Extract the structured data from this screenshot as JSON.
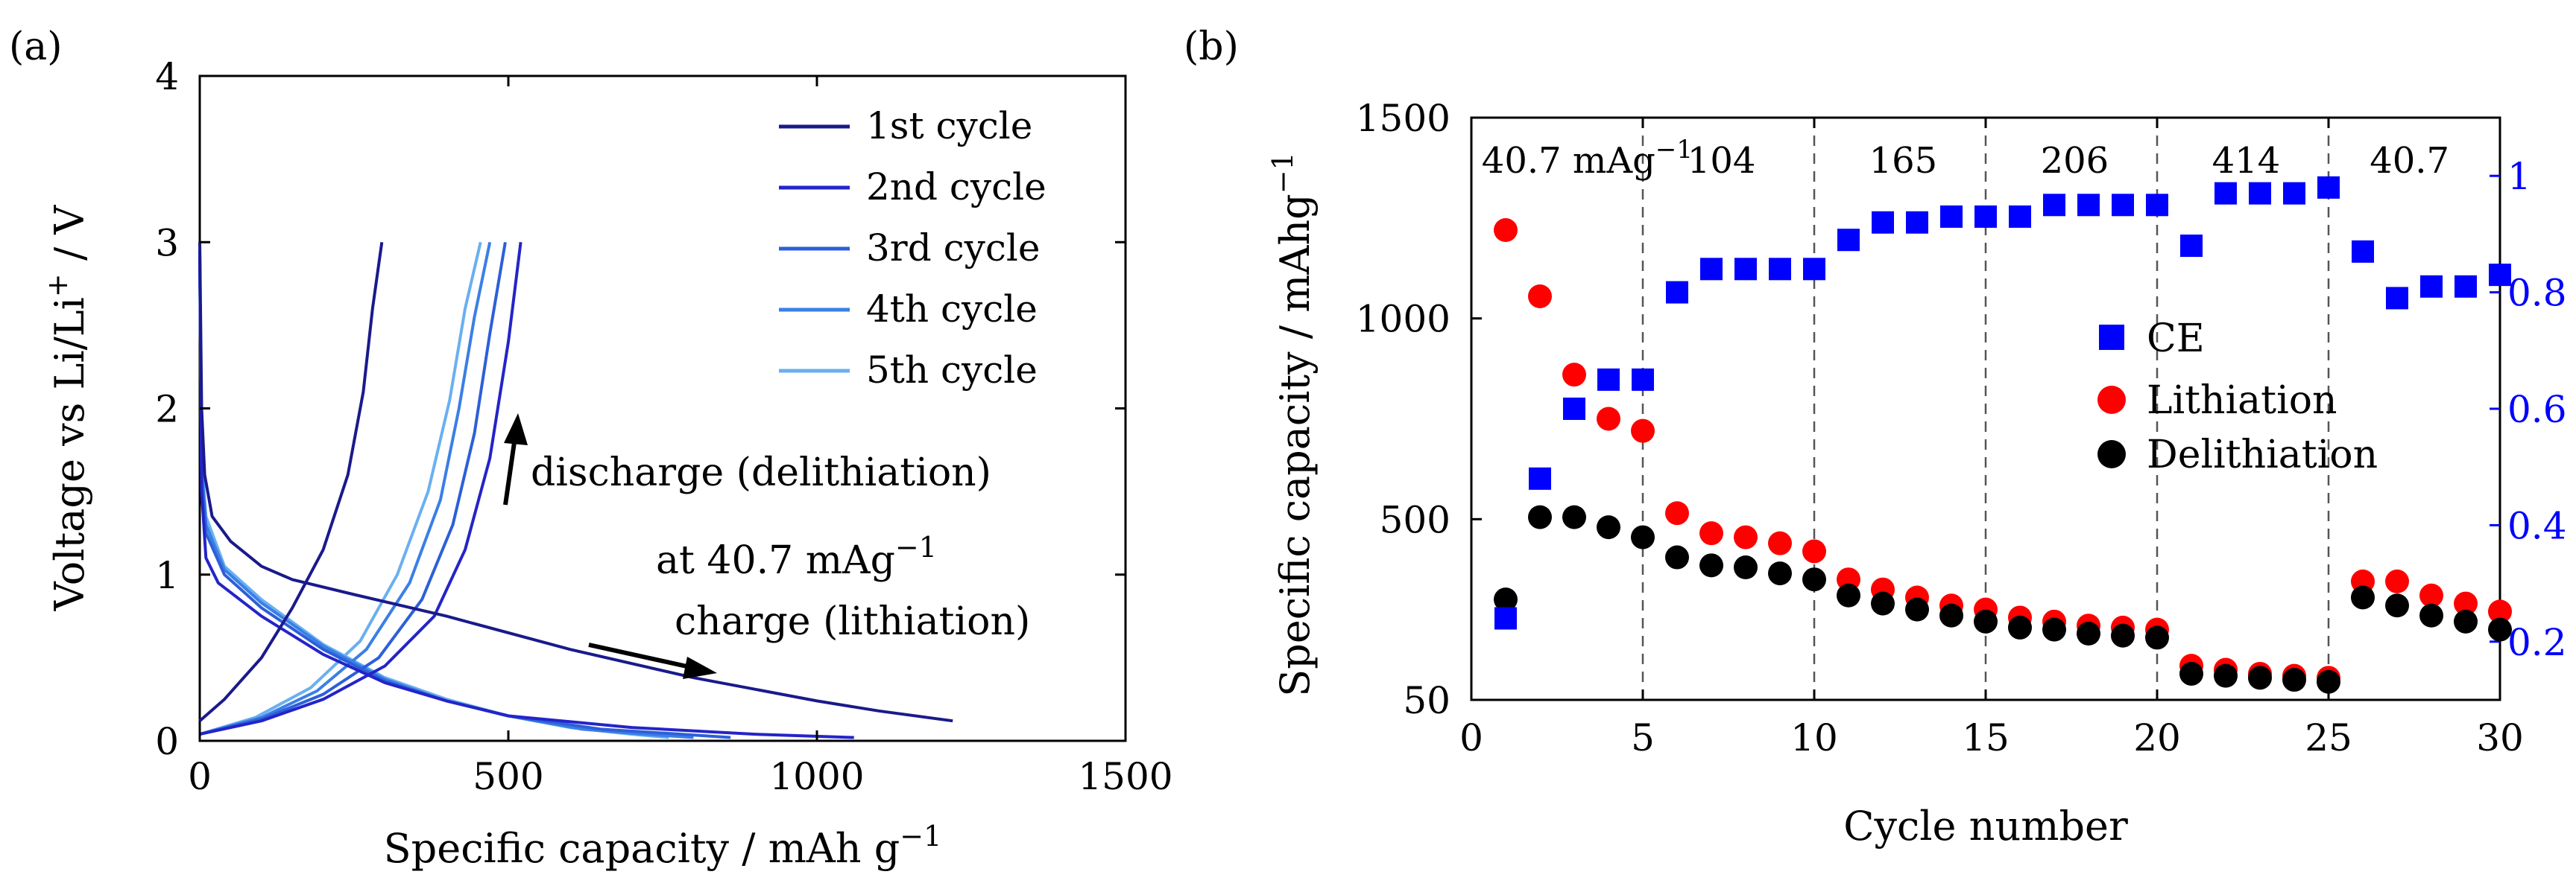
{
  "chart_data": [
    {
      "panel_label": "(a)",
      "type": "line",
      "xlabel": "Specific capacity / mAh g",
      "xlabel_sup": "−1",
      "ylabel": "Voltage vs Li/Li",
      "ylabel_sup": "+",
      "ylabel_tail": " / V",
      "xlim": [
        0,
        1500
      ],
      "ylim": [
        0,
        4
      ],
      "xticks": [
        0,
        500,
        1000,
        1500
      ],
      "yticks": [
        0,
        1,
        2,
        3,
        4
      ],
      "xtick_labels": [
        "0",
        "500",
        "1000",
        "1500"
      ],
      "ytick_labels": [
        "0",
        "1",
        "2",
        "3",
        "4"
      ],
      "legend": [
        "1st cycle",
        "2nd cycle",
        "3rd cycle",
        "4th cycle",
        "5th cycle"
      ],
      "annotations": {
        "discharge": "discharge (delithiation)",
        "rate_prefix": "at 40.7 mAg",
        "rate_sup": "−1",
        "charge": "charge (lithiation)"
      },
      "series": [
        {
          "name": "1st cycle",
          "color": "#1a1a8c",
          "charge": [
            [
              0,
              3.0
            ],
            [
              3,
              2.0
            ],
            [
              8,
              1.6
            ],
            [
              20,
              1.35
            ],
            [
              50,
              1.2
            ],
            [
              100,
              1.05
            ],
            [
              150,
              0.97
            ],
            [
              250,
              0.88
            ],
            [
              400,
              0.75
            ],
            [
              600,
              0.55
            ],
            [
              800,
              0.38
            ],
            [
              1000,
              0.24
            ],
            [
              1100,
              0.18
            ],
            [
              1220,
              0.12
            ]
          ],
          "discharge": [
            [
              0,
              0.12
            ],
            [
              40,
              0.25
            ],
            [
              100,
              0.5
            ],
            [
              150,
              0.8
            ],
            [
              200,
              1.15
            ],
            [
              240,
              1.6
            ],
            [
              265,
              2.1
            ],
            [
              280,
              2.6
            ],
            [
              295,
              3.0
            ]
          ]
        },
        {
          "name": "2nd cycle",
          "color": "#2424c8",
          "charge": [
            [
              0,
              2.95
            ],
            [
              3,
              1.5
            ],
            [
              10,
              1.1
            ],
            [
              30,
              0.95
            ],
            [
              100,
              0.75
            ],
            [
              200,
              0.52
            ],
            [
              300,
              0.35
            ],
            [
              400,
              0.24
            ],
            [
              500,
              0.15
            ],
            [
              700,
              0.08
            ],
            [
              900,
              0.04
            ],
            [
              1060,
              0.02
            ]
          ],
          "discharge": [
            [
              0,
              0.04
            ],
            [
              100,
              0.12
            ],
            [
              200,
              0.25
            ],
            [
              300,
              0.45
            ],
            [
              380,
              0.75
            ],
            [
              430,
              1.15
            ],
            [
              470,
              1.7
            ],
            [
              500,
              2.4
            ],
            [
              520,
              3.0
            ]
          ]
        },
        {
          "name": "3rd cycle",
          "color": "#2d5fd9",
          "charge": [
            [
              0,
              2.9
            ],
            [
              3,
              1.6
            ],
            [
              10,
              1.25
            ],
            [
              40,
              1.0
            ],
            [
              100,
              0.8
            ],
            [
              200,
              0.55
            ],
            [
              300,
              0.36
            ],
            [
              400,
              0.24
            ],
            [
              500,
              0.15
            ],
            [
              650,
              0.07
            ],
            [
              780,
              0.04
            ],
            [
              860,
              0.02
            ]
          ],
          "discharge": [
            [
              0,
              0.04
            ],
            [
              100,
              0.13
            ],
            [
              200,
              0.28
            ],
            [
              290,
              0.5
            ],
            [
              360,
              0.85
            ],
            [
              410,
              1.3
            ],
            [
              445,
              1.85
            ],
            [
              470,
              2.45
            ],
            [
              495,
              3.0
            ]
          ]
        },
        {
          "name": "4th cycle",
          "color": "#3a7fe6",
          "charge": [
            [
              0,
              2.9
            ],
            [
              3,
              1.65
            ],
            [
              10,
              1.3
            ],
            [
              40,
              1.03
            ],
            [
              100,
              0.83
            ],
            [
              200,
              0.57
            ],
            [
              300,
              0.37
            ],
            [
              400,
              0.24
            ],
            [
              500,
              0.15
            ],
            [
              620,
              0.07
            ],
            [
              720,
              0.04
            ],
            [
              800,
              0.02
            ]
          ],
          "discharge": [
            [
              0,
              0.04
            ],
            [
              100,
              0.14
            ],
            [
              190,
              0.3
            ],
            [
              270,
              0.55
            ],
            [
              340,
              0.95
            ],
            [
              390,
              1.45
            ],
            [
              420,
              2.0
            ],
            [
              445,
              2.55
            ],
            [
              470,
              3.0
            ]
          ]
        },
        {
          "name": "5th cycle",
          "color": "#6ab0f0",
          "charge": [
            [
              0,
              2.85
            ],
            [
              3,
              1.7
            ],
            [
              10,
              1.35
            ],
            [
              40,
              1.05
            ],
            [
              100,
              0.85
            ],
            [
              200,
              0.58
            ],
            [
              300,
              0.38
            ],
            [
              400,
              0.25
            ],
            [
              500,
              0.15
            ],
            [
              600,
              0.08
            ],
            [
              700,
              0.04
            ],
            [
              760,
              0.02
            ]
          ],
          "discharge": [
            [
              0,
              0.04
            ],
            [
              90,
              0.14
            ],
            [
              180,
              0.32
            ],
            [
              260,
              0.6
            ],
            [
              320,
              1.0
            ],
            [
              370,
              1.5
            ],
            [
              405,
              2.05
            ],
            [
              430,
              2.6
            ],
            [
              455,
              3.0
            ]
          ]
        }
      ]
    },
    {
      "panel_label": "(b)",
      "type": "scatter",
      "xlabel": "Cycle number",
      "ylabel": "Specific capacity / mAhg",
      "ylabel_sup": "−1",
      "xlim": [
        0,
        30
      ],
      "ylim_left": [
        50,
        1500
      ],
      "ylim_right": [
        0.1,
        1.1
      ],
      "xticks": [
        0,
        5,
        10,
        15,
        20,
        25,
        30
      ],
      "xtick_labels": [
        "0",
        "5",
        "10",
        "15",
        "20",
        "25",
        "30"
      ],
      "yticks_left": [
        50,
        500,
        1000,
        1500
      ],
      "ytick_labels_left": [
        "50",
        "500",
        "1000",
        "1500"
      ],
      "yticks_right": [
        0.2,
        0.4,
        0.6,
        0.8,
        1.0
      ],
      "ytick_labels_right": [
        "0.2",
        "0.4",
        "0.6",
        "0.8",
        "1"
      ],
      "vlines": [
        5,
        10,
        15,
        20,
        25
      ],
      "rate_labels": [
        {
          "text": "40.7 mAg",
          "sup": "−1",
          "x": 0.3
        },
        {
          "text": "104",
          "x": 6.3
        },
        {
          "text": "165",
          "x": 11.6
        },
        {
          "text": "206",
          "x": 16.6
        },
        {
          "text": "414",
          "x": 21.6
        },
        {
          "text": "40.7",
          "x": 26.2
        }
      ],
      "legend": [
        "CE",
        "Lithiation",
        "Delithiation"
      ],
      "series": [
        {
          "name": "CE",
          "marker": "square",
          "color": "#0000ff",
          "axis": "right",
          "x": [
            1,
            2,
            3,
            4,
            5,
            6,
            7,
            8,
            9,
            10,
            11,
            12,
            13,
            14,
            15,
            16,
            17,
            18,
            19,
            20,
            21,
            22,
            23,
            24,
            25,
            26,
            27,
            28,
            29,
            30
          ],
          "values": [
            0.24,
            0.48,
            0.6,
            0.65,
            0.65,
            0.8,
            0.84,
            0.84,
            0.84,
            0.84,
            0.89,
            0.92,
            0.92,
            0.93,
            0.93,
            0.93,
            0.95,
            0.95,
            0.95,
            0.95,
            0.88,
            0.97,
            0.97,
            0.97,
            0.98,
            0.87,
            0.79,
            0.81,
            0.81,
            0.83
          ]
        },
        {
          "name": "Lithiation",
          "marker": "circle",
          "color": "#ff0000",
          "axis": "left",
          "x": [
            1,
            2,
            3,
            4,
            5,
            6,
            7,
            8,
            9,
            10,
            11,
            12,
            13,
            14,
            15,
            16,
            17,
            18,
            19,
            20,
            21,
            22,
            23,
            24,
            25,
            26,
            27,
            28,
            29,
            30
          ],
          "values": [
            1220,
            1055,
            860,
            750,
            720,
            515,
            465,
            455,
            440,
            420,
            350,
            325,
            305,
            285,
            275,
            255,
            245,
            235,
            230,
            225,
            135,
            125,
            115,
            110,
            105,
            345,
            345,
            310,
            290,
            270
          ]
        },
        {
          "name": "Delithiation",
          "marker": "circle",
          "color": "#000000",
          "axis": "left",
          "x": [
            1,
            2,
            3,
            4,
            5,
            6,
            7,
            8,
            9,
            10,
            11,
            12,
            13,
            14,
            15,
            16,
            17,
            18,
            19,
            20,
            21,
            22,
            23,
            24,
            25,
            26,
            27,
            28,
            29,
            30
          ],
          "values": [
            300,
            505,
            505,
            480,
            455,
            405,
            385,
            380,
            365,
            350,
            310,
            290,
            275,
            260,
            245,
            230,
            225,
            215,
            210,
            205,
            115,
            110,
            105,
            100,
            95,
            305,
            285,
            260,
            245,
            225
          ]
        }
      ]
    }
  ]
}
